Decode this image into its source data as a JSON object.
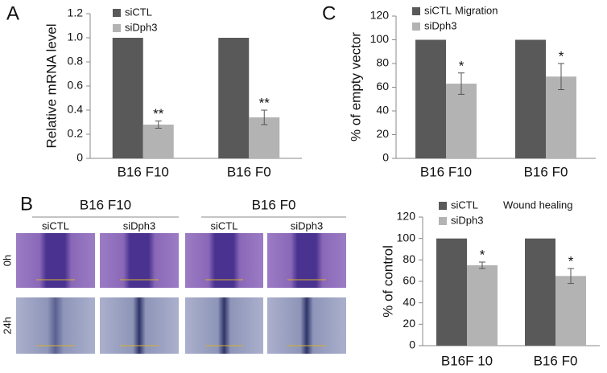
{
  "chart_data": [
    {
      "type": "bar",
      "panel_label": "A",
      "y_label": "Relative mRNA level",
      "categories": [
        "B16 F10",
        "B16 F0"
      ],
      "series": [
        {
          "name": "siCTL",
          "color": "#595959",
          "values": [
            1,
            1
          ]
        },
        {
          "name": "siDph3",
          "color": "#b3b3b3",
          "values": [
            0.28,
            0.34
          ],
          "errors": [
            0.03,
            0.06
          ],
          "markers": [
            "**",
            "**"
          ]
        }
      ],
      "ylim": [
        0,
        1.2
      ],
      "yticks": [
        0,
        0.2,
        0.4,
        0.6,
        0.8,
        {
          "value": 1,
          "label": "1.0"
        },
        1.2
      ]
    },
    {
      "type": "bar",
      "panel_label": "C",
      "title": "Migration",
      "y_label": "% of empty vector",
      "categories": [
        "B16 F10",
        "B16 F0"
      ],
      "series": [
        {
          "name": "siCTL",
          "color": "#595959",
          "values": [
            100,
            100
          ]
        },
        {
          "name": "siDph3",
          "color": "#b3b3b3",
          "values": [
            63,
            69
          ],
          "errors": [
            9,
            11
          ],
          "markers": [
            "*",
            "*"
          ]
        }
      ],
      "ylim": [
        0,
        120
      ],
      "yticks": [
        0,
        20,
        40,
        60,
        80,
        100,
        120
      ]
    },
    {
      "type": "bar",
      "title": "Wound healing",
      "y_label": "% of control",
      "categories": [
        "B16F 10",
        "B16 F0"
      ],
      "series": [
        {
          "name": "siCTL",
          "color": "#595959",
          "values": [
            100,
            100
          ]
        },
        {
          "name": "siDph3",
          "color": "#b3b3b3",
          "values": [
            75,
            65
          ],
          "errors": [
            3,
            7
          ],
          "markers": [
            "*",
            "*"
          ]
        }
      ],
      "ylim": [
        0,
        120
      ],
      "yticks": [
        0,
        20,
        40,
        60,
        80,
        100,
        120
      ]
    }
  ],
  "images": {
    "panel_label": "B",
    "groups": [
      {
        "name": "B16 F10",
        "conditions": [
          "siCTL",
          "siDph3"
        ]
      },
      {
        "name": "B16 F0",
        "conditions": [
          "siCTL",
          "siDph3"
        ]
      }
    ],
    "rows": [
      "0h",
      "24h"
    ]
  }
}
